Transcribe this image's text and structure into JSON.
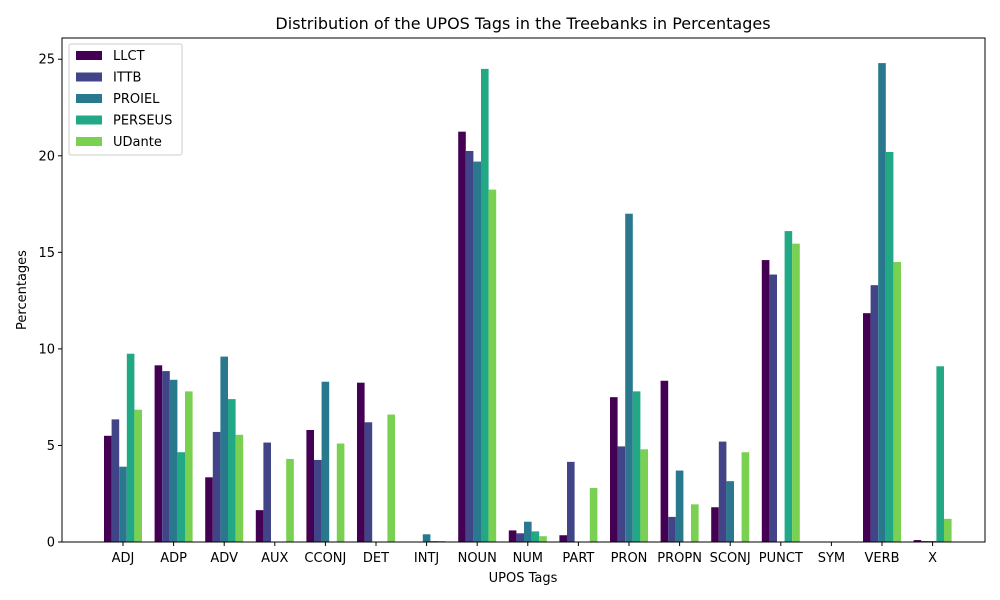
{
  "chart_data": {
    "type": "bar",
    "title": "Distribution of the UPOS Tags in the Treebanks in Percentages",
    "xlabel": "UPOS Tags",
    "ylabel": "Percentages",
    "ylim": [
      0,
      26.1
    ],
    "yticks": [
      0,
      5,
      10,
      15,
      20,
      25
    ],
    "grid": false,
    "legend_position": "top-left",
    "categories": [
      "ADJ",
      "ADP",
      "ADV",
      "AUX",
      "CCONJ",
      "DET",
      "INTJ",
      "NOUN",
      "NUM",
      "PART",
      "PRON",
      "PROPN",
      "SCONJ",
      "PUNCT",
      "SYM",
      "VERB",
      "X"
    ],
    "series": [
      {
        "name": "LLCT",
        "color": "#440154",
        "values": [
          5.5,
          9.15,
          3.35,
          1.65,
          5.8,
          8.25,
          0.0,
          21.25,
          0.6,
          0.35,
          7.5,
          8.35,
          1.8,
          14.6,
          0.0,
          11.85,
          0.1
        ]
      },
      {
        "name": "ITTB",
        "color": "#414487",
        "values": [
          6.35,
          8.85,
          5.7,
          5.15,
          4.25,
          6.2,
          0.0,
          20.25,
          0.45,
          4.15,
          4.95,
          1.3,
          5.2,
          13.85,
          0.0,
          13.3,
          0.05
        ]
      },
      {
        "name": "PROIEL",
        "color": "#2a788e",
        "values": [
          3.9,
          8.4,
          9.6,
          0.0,
          8.3,
          0.0,
          0.4,
          19.7,
          1.05,
          0.0,
          17.0,
          3.7,
          3.15,
          0.0,
          0.0,
          24.8,
          0.05
        ]
      },
      {
        "name": "PERSEUS",
        "color": "#22a884",
        "values": [
          9.75,
          4.65,
          7.4,
          0.0,
          0.0,
          0.0,
          0.05,
          24.5,
          0.55,
          0.0,
          7.8,
          0.0,
          0.0,
          16.1,
          0.0,
          20.2,
          9.1
        ]
      },
      {
        "name": "UDante",
        "color": "#7ad151",
        "values": [
          6.85,
          7.8,
          5.55,
          4.3,
          5.1,
          6.6,
          0.05,
          18.25,
          0.3,
          2.8,
          4.8,
          1.95,
          4.65,
          15.45,
          0.0,
          14.5,
          1.2
        ]
      }
    ]
  }
}
